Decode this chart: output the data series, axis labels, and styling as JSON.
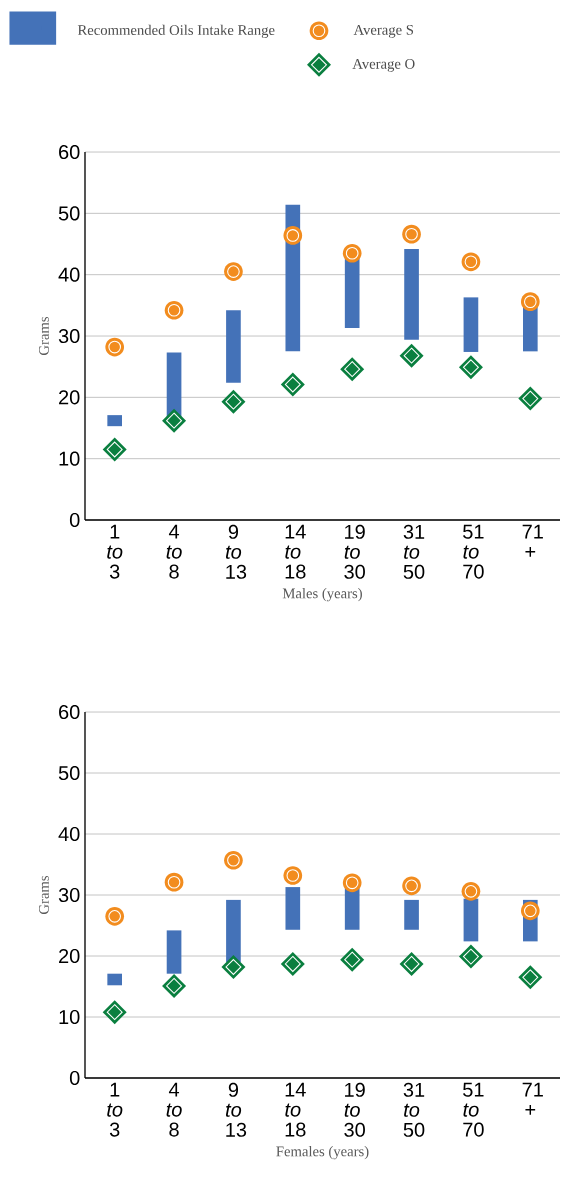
{
  "chart_data": [
    {
      "type": "bar",
      "categories": [
        "1 *to* 3",
        "4 *to* 8",
        "9 *to* 13",
        "14 *to* 18",
        "19 *to* 30",
        "31 *to* 50",
        "51 *to* 70",
        "71 +"
      ],
      "xlabel": "Males (years)",
      "ylabel": "Grams",
      "ylim": [
        0,
        60
      ],
      "yticks": [
        0,
        10,
        20,
        30,
        40,
        50,
        60
      ],
      "grid": "y",
      "legend": "top",
      "series": [
        {
          "name": "Recommended Oils Intake Range",
          "color": "#4472b8",
          "base": [
            15.3,
            16.0,
            22.4,
            27.5,
            31.3,
            29.4,
            27.4,
            27.5
          ],
          "values": [
            1.8,
            11.3,
            11.8,
            23.9,
            11.7,
            14.8,
            8.9,
            7.5
          ]
        },
        {
          "type": "scatter",
          "name": "Average S",
          "color": "#f28c1e",
          "marker": "circle",
          "values": [
            28.2,
            34.2,
            40.5,
            46.4,
            43.5,
            46.6,
            42.1,
            35.6
          ]
        },
        {
          "type": "scatter",
          "name": "Average O",
          "color": "#0a7f3f",
          "marker": "diamond",
          "values": [
            11.5,
            16.2,
            19.3,
            22.1,
            24.6,
            26.8,
            24.9,
            19.8
          ]
        }
      ]
    },
    {
      "type": "bar",
      "categories": [
        "1 *to* 3",
        "4 *to* 8",
        "9 *to* 13",
        "14 *to* 18",
        "19 *to* 30",
        "31 *to* 50",
        "51 *to* 70",
        "71 +"
      ],
      "xlabel": "Females (years)",
      "ylabel": "Grams",
      "ylim": [
        0,
        60
      ],
      "yticks": [
        0,
        10,
        20,
        30,
        40,
        50,
        60
      ],
      "grid": "y",
      "series": [
        {
          "color": "#4472b8",
          "base": [
            15.2,
            17.1,
            19.0,
            24.3,
            24.3,
            24.3,
            22.4,
            22.4
          ],
          "values": [
            1.9,
            7.1,
            10.2,
            7.0,
            7.0,
            4.9,
            7.0,
            6.8
          ]
        },
        {
          "type": "scatter",
          "color": "#f28c1e",
          "marker": "circle",
          "values": [
            26.5,
            32.1,
            35.7,
            33.2,
            32.0,
            31.5,
            30.6,
            27.4
          ]
        },
        {
          "type": "scatter",
          "color": "#0a7f3f",
          "marker": "diamond",
          "values": [
            10.8,
            15.1,
            18.2,
            18.7,
            19.4,
            18.7,
            19.9,
            16.5
          ]
        }
      ]
    }
  ]
}
